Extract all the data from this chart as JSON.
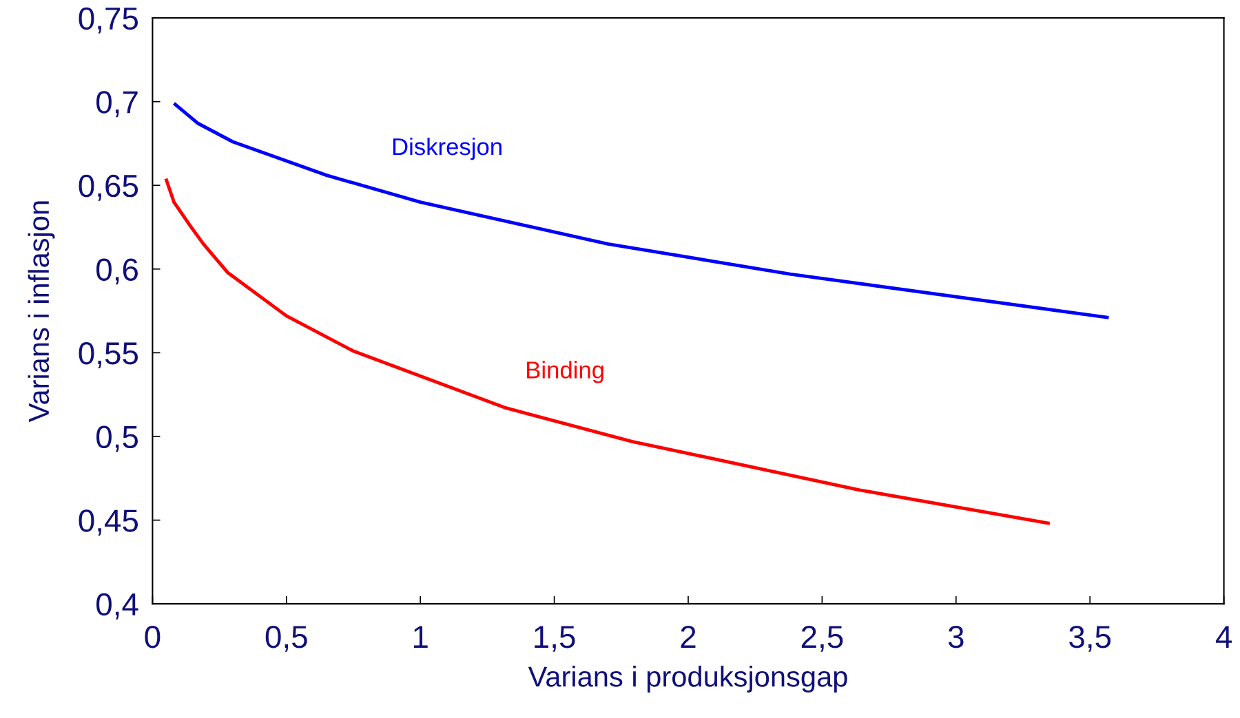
{
  "chart_data": {
    "type": "line",
    "xlabel": "Varians i produksjonsgap",
    "ylabel": "Varians i inflasjon",
    "xlim": [
      0,
      4
    ],
    "xticks": [
      0,
      {
        "value": 0.5,
        "label": "0,5"
      },
      1,
      {
        "value": 1.5,
        "label": "1,5"
      },
      2,
      {
        "value": 2.5,
        "label": "2,5"
      },
      3,
      {
        "value": 3.5,
        "label": "3,5"
      },
      4
    ],
    "ylim": [
      0.4,
      0.75
    ],
    "yticks": [
      {
        "value": 0.4,
        "label": "0,4"
      },
      {
        "value": 0.45,
        "label": "0,45"
      },
      {
        "value": 0.5,
        "label": "0,5"
      },
      {
        "value": 0.55,
        "label": "0,55"
      },
      {
        "value": 0.6,
        "label": "0,6"
      },
      {
        "value": 0.65,
        "label": "0,65"
      },
      {
        "value": 0.7,
        "label": "0,7"
      },
      {
        "value": 0.75,
        "label": "0,75"
      }
    ],
    "grid": false,
    "legend": false,
    "marker": "none",
    "line_style": "solid",
    "series": [
      {
        "name": "Diskresjon",
        "color": "#0000ff",
        "x": [
          0.08,
          0.17,
          0.3,
          0.65,
          1.0,
          1.7,
          2.38,
          3.57
        ],
        "values": [
          0.699,
          0.687,
          0.676,
          0.656,
          0.64,
          0.615,
          0.597,
          0.571
        ]
      },
      {
        "name": "Binding",
        "color": "#ff0000",
        "x": [
          0.05,
          0.08,
          0.14,
          0.19,
          0.28,
          0.5,
          0.75,
          1.32,
          1.79,
          2.64,
          3.35
        ],
        "values": [
          0.654,
          0.64,
          0.626,
          0.615,
          0.598,
          0.572,
          0.551,
          0.517,
          0.497,
          0.468,
          0.448
        ]
      }
    ]
  }
}
